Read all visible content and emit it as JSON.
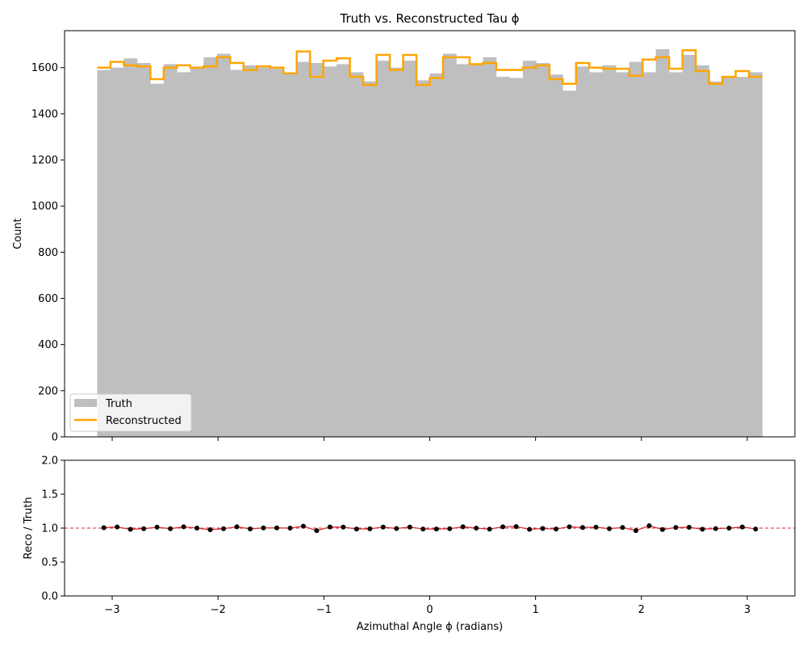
{
  "chart_data": [
    {
      "type": "bar",
      "title": "Truth vs. Reconstructed Tau ϕ",
      "xlabel": "",
      "ylabel": "Count",
      "xlim": [
        -3.45,
        3.45
      ],
      "ylim": [
        0,
        1760
      ],
      "grid": false,
      "legend_placement": "lower-left",
      "x": [
        -3.0788,
        -2.9531,
        -2.8274,
        -2.7018,
        -2.5761,
        -2.4504,
        -2.3248,
        -2.1991,
        -2.0735,
        -1.9478,
        -1.8221,
        -1.6965,
        -1.5708,
        -1.4451,
        -1.3195,
        -1.1938,
        -1.0681,
        -0.9425,
        -0.8168,
        -0.6912,
        -0.5655,
        -0.4398,
        -0.3142,
        -0.1885,
        -0.0628,
        0.0628,
        0.1885,
        0.3142,
        0.4398,
        0.5655,
        0.6912,
        0.8168,
        0.9425,
        1.0681,
        1.1938,
        1.3195,
        1.4451,
        1.5708,
        1.6965,
        1.8221,
        1.9478,
        2.0735,
        2.1991,
        2.3248,
        2.4504,
        2.5761,
        2.7018,
        2.8274,
        2.9531,
        3.0788
      ],
      "series": [
        {
          "name": "Truth",
          "style": "filled-histogram",
          "color": "#bfbfbf",
          "values": [
            1590,
            1600,
            1640,
            1620,
            1530,
            1615,
            1580,
            1600,
            1645,
            1660,
            1590,
            1610,
            1600,
            1595,
            1575,
            1625,
            1620,
            1605,
            1615,
            1580,
            1540,
            1630,
            1600,
            1630,
            1545,
            1575,
            1660,
            1615,
            1615,
            1645,
            1560,
            1555,
            1630,
            1620,
            1570,
            1500,
            1605,
            1580,
            1610,
            1580,
            1625,
            1580,
            1680,
            1580,
            1655,
            1610,
            1540,
            1560,
            1560,
            1580
          ]
        },
        {
          "name": "Reconstructed",
          "style": "step",
          "color": "#ffa500",
          "values": [
            1600,
            1625,
            1610,
            1605,
            1550,
            1600,
            1610,
            1600,
            1605,
            1645,
            1620,
            1590,
            1605,
            1600,
            1575,
            1670,
            1560,
            1630,
            1640,
            1560,
            1525,
            1655,
            1590,
            1655,
            1525,
            1555,
            1645,
            1645,
            1615,
            1620,
            1590,
            1590,
            1600,
            1610,
            1550,
            1530,
            1620,
            1600,
            1595,
            1595,
            1565,
            1635,
            1645,
            1595,
            1675,
            1585,
            1530,
            1560,
            1585,
            1560
          ]
        }
      ],
      "yticks": [
        "0",
        "200",
        "400",
        "600",
        "800",
        "1000",
        "1200",
        "1400",
        "1600"
      ]
    },
    {
      "type": "line",
      "title": "",
      "xlabel": "Azimuthal Angle ϕ (radians)",
      "ylabel": "Reco / Truth",
      "xlim": [
        -3.45,
        3.45
      ],
      "ylim": [
        0.0,
        2.0
      ],
      "grid": false,
      "reference_line": {
        "y": 1.0,
        "color": "#d62728",
        "style": "dashed"
      },
      "xticks": [
        "−3",
        "−2",
        "−1",
        "0",
        "1",
        "2",
        "3"
      ],
      "yticks": [
        "0.0",
        "0.5",
        "1.0",
        "1.5",
        "2.0"
      ],
      "series": [
        {
          "color": "#000000",
          "line_color": "#d62728",
          "values": [
            1.006,
            1.016,
            0.982,
            0.991,
            1.013,
            0.991,
            1.019,
            1.0,
            0.976,
            0.991,
            1.019,
            0.988,
            1.003,
            1.003,
            1.0,
            1.028,
            0.963,
            1.016,
            1.015,
            0.987,
            0.99,
            1.015,
            0.994,
            1.015,
            0.987,
            0.987,
            0.991,
            1.019,
            1.0,
            0.985,
            1.019,
            1.023,
            0.982,
            0.994,
            0.987,
            1.02,
            1.009,
            1.013,
            0.991,
            1.009,
            0.963,
            1.035,
            0.979,
            1.009,
            1.012,
            0.984,
            0.993,
            1.0,
            1.016,
            0.987
          ]
        }
      ]
    }
  ]
}
